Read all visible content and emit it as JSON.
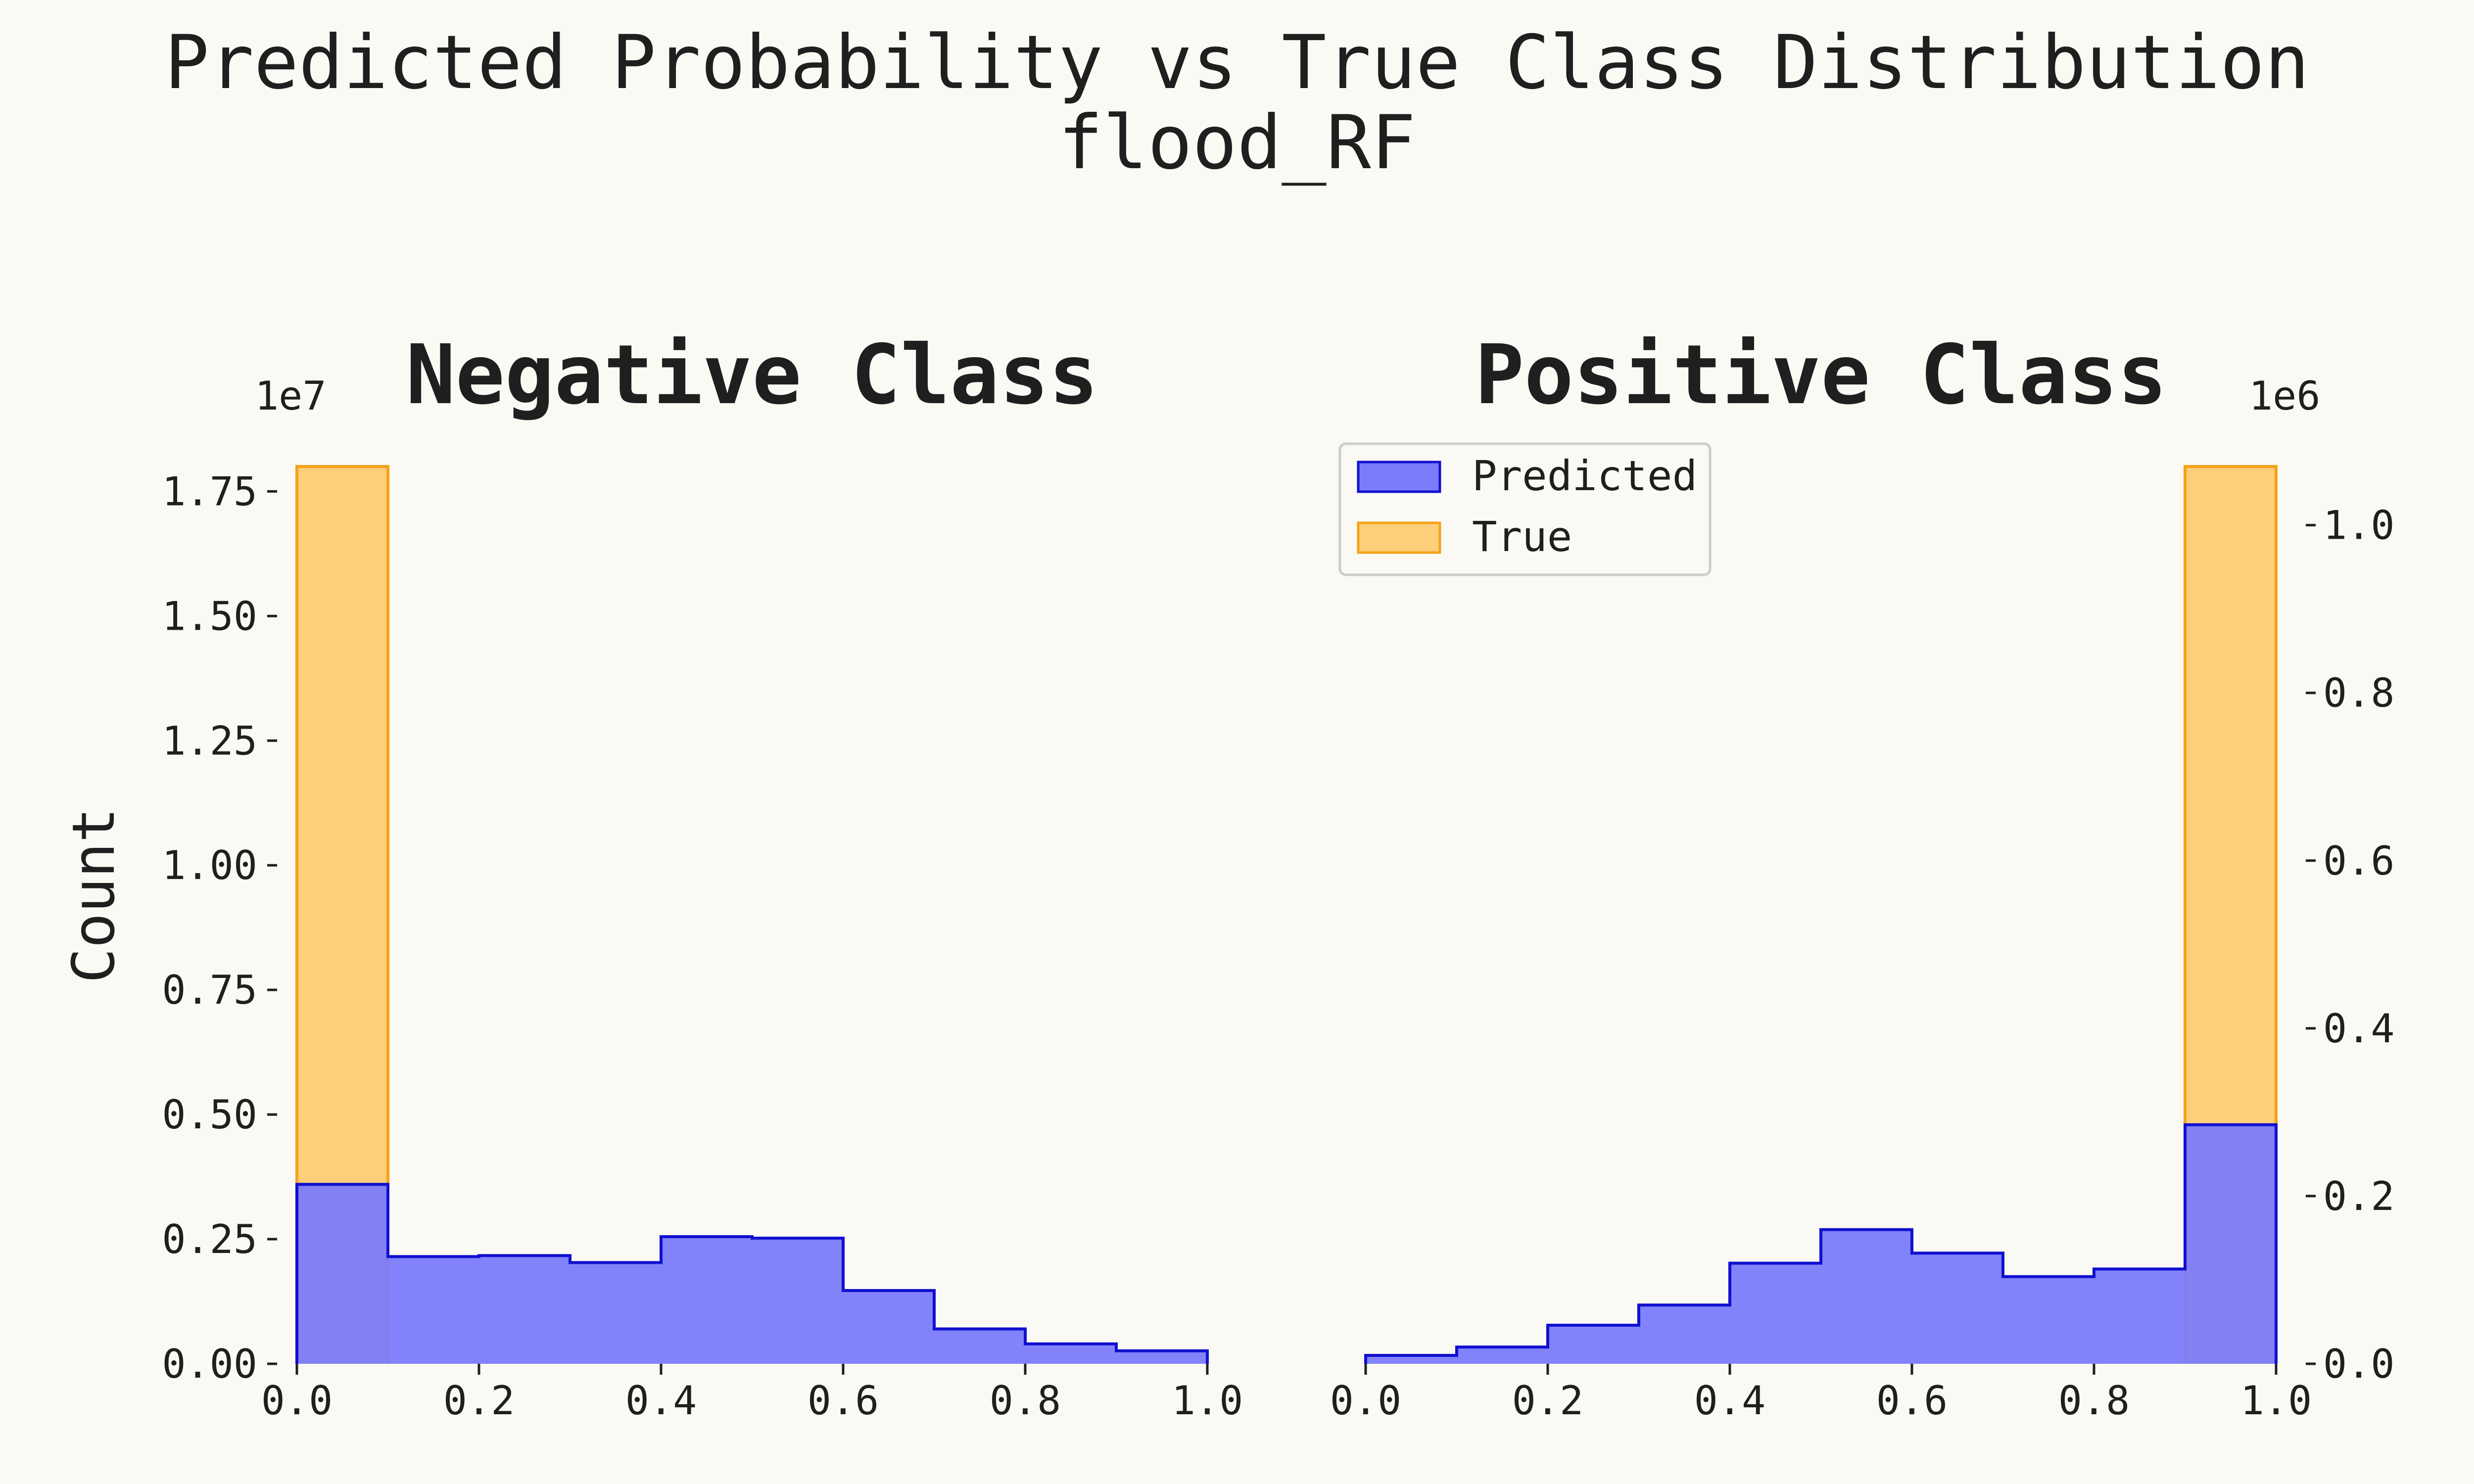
{
  "figure": {
    "title_line1": "Predicted Probability vs True Class Distribution",
    "title_line2": "flood_RF",
    "background": "#faf9f4"
  },
  "chart_data": [
    {
      "type": "bar",
      "title": "Negative Class",
      "xlabel": "",
      "ylabel": "Count",
      "xlim": [
        0.0,
        1.0
      ],
      "ylim": [
        0.0,
        1.8
      ],
      "y_offset_label": "1e7",
      "y_axis_side": "left",
      "grid": false,
      "bin_edges": [
        0.0,
        0.1,
        0.2,
        0.3,
        0.4,
        0.5,
        0.6,
        0.7,
        0.8,
        0.9,
        1.0
      ],
      "x_ticks": [
        "0.0",
        "0.2",
        "0.4",
        "0.6",
        "0.8",
        "1.0"
      ],
      "y_ticks": [
        "0.00",
        "0.25",
        "0.50",
        "0.75",
        "1.00",
        "1.25",
        "1.50",
        "1.75"
      ],
      "series": [
        {
          "name": "Predicted",
          "color": "#7b7bfa",
          "edge": "#1010d0",
          "values": [
            0.36,
            0.215,
            0.217,
            0.203,
            0.255,
            0.252,
            0.147,
            0.07,
            0.04,
            0.026
          ]
        },
        {
          "name": "True",
          "color": "#fecf7a",
          "edge": "#f3a31a",
          "values": [
            1.8,
            0,
            0,
            0,
            0,
            0,
            0,
            0,
            0,
            0
          ]
        }
      ]
    },
    {
      "type": "bar",
      "title": "Positive Class",
      "xlabel": "",
      "ylabel": "",
      "xlim": [
        0.0,
        1.0
      ],
      "ylim": [
        0.0,
        1.07
      ],
      "y_offset_label": "1e6",
      "y_axis_side": "right",
      "grid": false,
      "bin_edges": [
        0.0,
        0.1,
        0.2,
        0.3,
        0.4,
        0.5,
        0.6,
        0.7,
        0.8,
        0.9,
        1.0
      ],
      "x_ticks": [
        "0.0",
        "0.2",
        "0.4",
        "0.6",
        "0.8",
        "1.0"
      ],
      "y_ticks": [
        "0.0",
        "0.2",
        "0.4",
        "0.6",
        "0.8",
        "1.0"
      ],
      "legend": {
        "position": "upper-left",
        "entries": [
          "Predicted",
          "True"
        ]
      },
      "series": [
        {
          "name": "Predicted",
          "color": "#7b7bfa",
          "edge": "#1010d0",
          "values": [
            0.01,
            0.02,
            0.046,
            0.07,
            0.12,
            0.16,
            0.132,
            0.104,
            0.113,
            0.285
          ]
        },
        {
          "name": "True",
          "color": "#fecf7a",
          "edge": "#f3a31a",
          "values": [
            0,
            0,
            0,
            0,
            0,
            0,
            0,
            0,
            0,
            1.07
          ]
        }
      ]
    }
  ]
}
